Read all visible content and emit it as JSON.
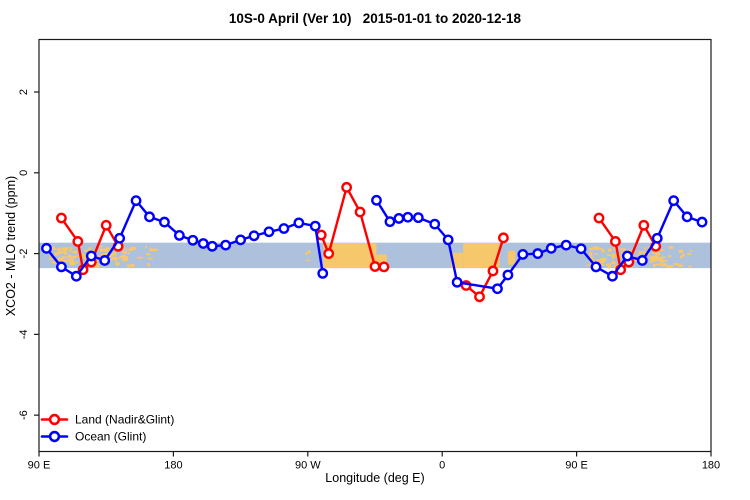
{
  "title": "10S-0 April (Ver 10)   2015-01-01 to 2020-12-18",
  "chart_data": {
    "type": "line",
    "title": "10S-0 April (Ver 10)   2015-01-01 to 2020-12-18",
    "xlabel": "Longitude (deg E)",
    "ylabel": "XCO2 - MLO trend (ppm)",
    "xlim": [
      90,
      540
    ],
    "ylim": [
      -6.9,
      3.3
    ],
    "grid": false,
    "xticks": [
      {
        "pos": 90,
        "label": "90 E"
      },
      {
        "pos": 180,
        "label": "180"
      },
      {
        "pos": 270,
        "label": "90 W"
      },
      {
        "pos": 360,
        "label": "0"
      },
      {
        "pos": 450,
        "label": "90 E"
      },
      {
        "pos": 540,
        "label": "180"
      }
    ],
    "yticks": [
      {
        "pos": 2,
        "label": "2"
      },
      {
        "pos": 0,
        "label": "0"
      },
      {
        "pos": -2,
        "label": "-2"
      },
      {
        "pos": -4,
        "label": "-4"
      },
      {
        "pos": -6,
        "label": "-6"
      }
    ],
    "colors": {
      "land_series": "#ff0000",
      "ocean_series": "#0000ff",
      "ocean_band": "#adc1dd",
      "land_mass": "#f6c76b",
      "axis": "#1a1a1a"
    },
    "latitude_band": {
      "top": -1.73,
      "bottom": -2.36
    },
    "land_blocks": [
      {
        "name": "south-america",
        "from": 280.5,
        "to": 316,
        "top": -1.74,
        "bottom": -2.36
      },
      {
        "name": "south-america-east",
        "from": 316,
        "to": 323,
        "top": -2.02,
        "bottom": -2.36
      },
      {
        "name": "africa-west",
        "from": 366,
        "to": 374,
        "top": -1.98,
        "bottom": -2.36
      },
      {
        "name": "africa",
        "from": 374,
        "to": 398.5,
        "top": -1.74,
        "bottom": -2.36
      },
      {
        "name": "madagascar",
        "from": 404,
        "to": 409,
        "top": -1.93,
        "bottom": -2.28
      }
    ],
    "land_speckle_groups": [
      {
        "from": 96,
        "to": 107,
        "count": 26
      },
      {
        "from": 109,
        "to": 128,
        "count": 34
      },
      {
        "from": 130,
        "to": 152,
        "count": 40
      },
      {
        "from": 153,
        "to": 167,
        "count": 8
      },
      {
        "from": 267.5,
        "to": 270,
        "count": 3
      },
      {
        "from": 456,
        "to": 467,
        "count": 26
      },
      {
        "from": 469,
        "to": 488,
        "count": 34
      },
      {
        "from": 490,
        "to": 512,
        "count": 40
      },
      {
        "from": 513,
        "to": 527,
        "count": 8
      }
    ],
    "series": [
      {
        "name": "Land (Nadir&Glint)",
        "color": "#ff0000",
        "segments": [
          [
            [
              105,
              -1.12
            ],
            [
              116,
              -1.7
            ],
            [
              119.5,
              -2.4
            ],
            [
              125,
              -2.21
            ],
            [
              135,
              -1.3
            ],
            [
              143,
              -1.82
            ]
          ],
          [
            [
              279,
              -1.54
            ],
            [
              284,
              -2.0
            ],
            [
              296,
              -0.36
            ],
            [
              305,
              -0.97
            ],
            [
              315,
              -2.32
            ],
            [
              321,
              -2.33
            ]
          ],
          [
            [
              376,
              -2.79
            ],
            [
              385,
              -3.07
            ],
            [
              394,
              -2.43
            ],
            [
              401,
              -1.61
            ]
          ],
          [
            [
              465,
              -1.12
            ],
            [
              476,
              -1.7
            ],
            [
              479.5,
              -2.4
            ],
            [
              485,
              -2.21
            ],
            [
              495,
              -1.3
            ],
            [
              503,
              -1.82
            ]
          ]
        ]
      },
      {
        "name": "Ocean (Glint)",
        "color": "#0000ff",
        "segments": [
          [
            [
              95,
              -1.87
            ],
            [
              105,
              -2.33
            ],
            [
              115,
              -2.56
            ],
            [
              125,
              -2.06
            ],
            [
              134,
              -2.17
            ],
            [
              144,
              -1.62
            ],
            [
              155,
              -0.69
            ],
            [
              164,
              -1.09
            ],
            [
              174,
              -1.22
            ],
            [
              184,
              -1.55
            ],
            [
              193,
              -1.67
            ],
            [
              200,
              -1.75
            ],
            [
              206,
              -1.82
            ],
            [
              215,
              -1.79
            ],
            [
              225,
              -1.66
            ],
            [
              234,
              -1.56
            ],
            [
              244,
              -1.46
            ],
            [
              254,
              -1.38
            ],
            [
              264,
              -1.24
            ],
            [
              275,
              -1.32
            ],
            [
              280,
              -2.49
            ]
          ],
          [
            [
              316,
              -0.68
            ],
            [
              325,
              -1.21
            ],
            [
              331,
              -1.13
            ],
            [
              337,
              -1.1
            ],
            [
              344,
              -1.11
            ],
            [
              355,
              -1.27
            ],
            [
              364,
              -1.66
            ],
            [
              370,
              -2.71
            ],
            [
              397,
              -2.87
            ],
            [
              404,
              -2.53
            ],
            [
              414,
              -2.02
            ],
            [
              424,
              -2.0
            ],
            [
              433,
              -1.87
            ],
            [
              443,
              -1.79
            ],
            [
              453,
              -1.88
            ],
            [
              463,
              -2.33
            ],
            [
              474,
              -2.56
            ],
            [
              484,
              -2.06
            ],
            [
              494,
              -2.17
            ],
            [
              504,
              -1.62
            ],
            [
              515,
              -0.69
            ],
            [
              524,
              -1.09
            ],
            [
              534,
              -1.22
            ]
          ]
        ]
      }
    ],
    "legend": {
      "position": "bottom-left",
      "items": [
        {
          "label": "Land (Nadir&Glint)",
          "color": "#ff0000"
        },
        {
          "label": "Ocean (Glint)",
          "color": "#0000ff"
        }
      ]
    }
  }
}
